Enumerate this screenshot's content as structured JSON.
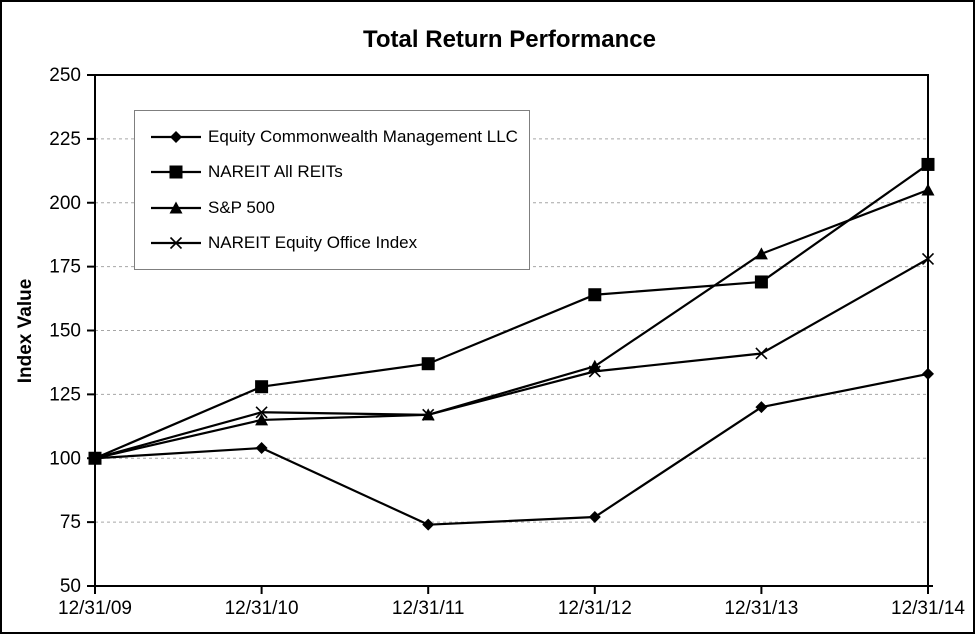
{
  "chart_data": {
    "type": "line",
    "title": "Total Return Performance",
    "xlabel": "",
    "ylabel": "Index Value",
    "categories": [
      "12/31/09",
      "12/31/10",
      "12/31/11",
      "12/31/12",
      "12/31/13",
      "12/31/14"
    ],
    "series": [
      {
        "name": "Equity Commonwealth Management LLC",
        "marker": "diamond",
        "values": [
          100,
          104,
          74,
          77,
          120,
          133
        ]
      },
      {
        "name": "NAREIT All REITs",
        "marker": "square",
        "values": [
          100,
          128,
          137,
          164,
          169,
          215
        ]
      },
      {
        "name": "S&P 500",
        "marker": "triangle",
        "values": [
          100,
          115,
          117,
          136,
          180,
          205
        ]
      },
      {
        "name": "NAREIT Equity Office Index",
        "marker": "x",
        "values": [
          100,
          118,
          117,
          134,
          141,
          178
        ]
      }
    ],
    "ylim": [
      50,
      250
    ],
    "yticks": [
      50,
      75,
      100,
      125,
      150,
      175,
      200,
      225,
      250
    ],
    "grid": "horizontal-dashed",
    "legend_position": "top-left-inside",
    "colors": {
      "line": "#000000",
      "gridline": "#a6a6a6",
      "legend_border": "#7f7f7f",
      "background": "#ffffff",
      "text": "#000000"
    }
  }
}
